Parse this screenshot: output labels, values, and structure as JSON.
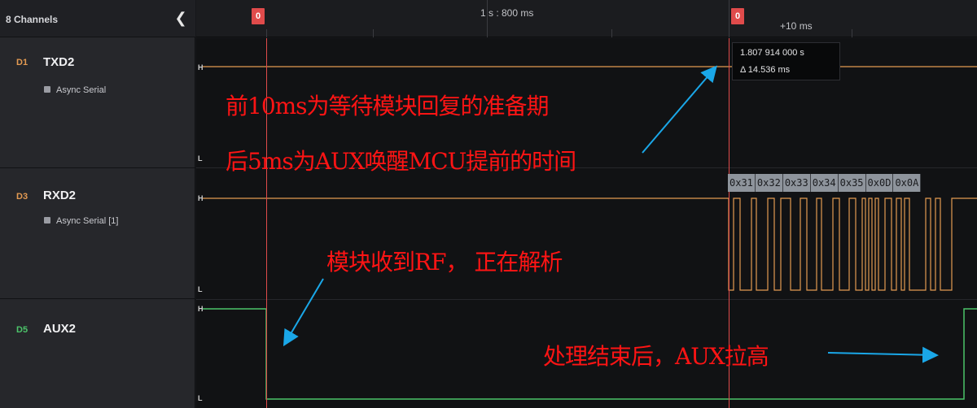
{
  "sidebar": {
    "title": "8 Channels",
    "collapse_icon": "chevron-left-icon",
    "channels": [
      {
        "index": "D1",
        "name": "TXD2",
        "analyzer": "Async Serial",
        "index_color": "#e39a52"
      },
      {
        "index": "D3",
        "name": "RXD2",
        "analyzer": "Async Serial [1]",
        "index_color": "#e39a52"
      },
      {
        "index": "D5",
        "name": "AUX2",
        "analyzer": "",
        "index_color": "#4cc46a"
      }
    ]
  },
  "timeline": {
    "time_label": "1 s : 800 ms",
    "delta_label": "+10 ms",
    "markers": [
      {
        "label": "0",
        "color": "#e04b4b"
      },
      {
        "label": "0",
        "color": "#e04b4b"
      }
    ]
  },
  "levels": {
    "high": "H",
    "low": "L"
  },
  "tooltip": {
    "time": "1.807 914 000 s",
    "delta": "Δ 14.536 ms"
  },
  "decoded_bytes": [
    "0x31",
    "0x32",
    "0x33",
    "0x34",
    "0x35",
    "0x0D",
    "0x0A"
  ],
  "annotations": {
    "line1": "前10ms为等待模块回复的准备期",
    "line2": "后5ms为AUX唤醒MCU提前的时间",
    "line3": "模块收到RF， 正在解析",
    "line4": "处理结束后，AUX拉高"
  },
  "colors": {
    "serial_signal": "#e39a52",
    "aux_signal": "#4cc46a",
    "marker": "#e04b4b",
    "arrow": "#1aa7e8",
    "annotation_text": "#ff1414"
  }
}
